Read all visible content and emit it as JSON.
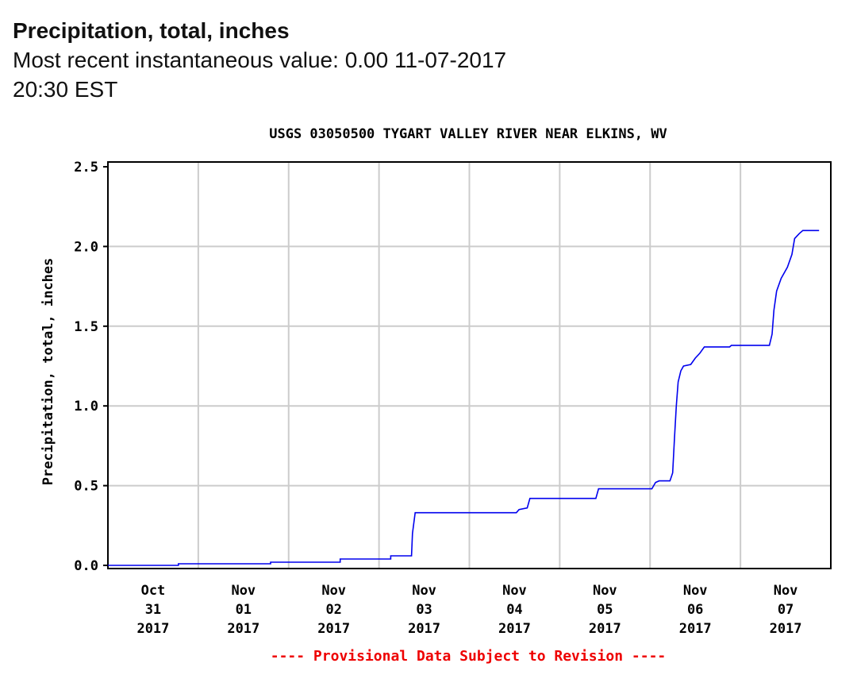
{
  "header": {
    "title": "Precipitation, total, inches",
    "subtitle": "Most recent instantaneous value: 0.00 11-07-2017   20:30 EST"
  },
  "chart_data": {
    "type": "line",
    "title": "USGS 03050500 TYGART VALLEY RIVER NEAR ELKINS, WV",
    "xlabel": "",
    "ylabel": "Precipitation, total, inches",
    "ylim": [
      0,
      2.5
    ],
    "yticks": [
      "0.0",
      "0.5",
      "1.0",
      "1.5",
      "2.0",
      "2.5"
    ],
    "xlim_days_since_oct31": [
      0,
      8
    ],
    "xticks": [
      [
        "Oct",
        "31",
        "2017"
      ],
      [
        "Nov",
        "01",
        "2017"
      ],
      [
        "Nov",
        "02",
        "2017"
      ],
      [
        "Nov",
        "03",
        "2017"
      ],
      [
        "Nov",
        "04",
        "2017"
      ],
      [
        "Nov",
        "05",
        "2017"
      ],
      [
        "Nov",
        "06",
        "2017"
      ],
      [
        "Nov",
        "07",
        "2017"
      ]
    ],
    "grid": true,
    "footnote": "---- Provisional Data Subject to Revision ----",
    "colors": {
      "line": "#0000ee",
      "footnote": "#ee0000",
      "grid": "#cccccc"
    },
    "series": [
      {
        "name": "Precipitation, total",
        "x_days": [
          0,
          0.78,
          0.78,
          1.8,
          1.8,
          2.57,
          2.57,
          3.13,
          3.13,
          3.36,
          3.37,
          3.4,
          4.52,
          4.55,
          4.64,
          4.67,
          5.4,
          5.43,
          6.02,
          6.06,
          6.1,
          6.22,
          6.25,
          6.27,
          6.29,
          6.31,
          6.34,
          6.37,
          6.45,
          6.5,
          6.55,
          6.6,
          6.88,
          6.9,
          7.32,
          7.35,
          7.37,
          7.4,
          7.45,
          7.52,
          7.57,
          7.6,
          7.65,
          7.69,
          7.87
        ],
        "values": [
          0,
          0,
          0.01,
          0.01,
          0.02,
          0.02,
          0.04,
          0.04,
          0.06,
          0.06,
          0.2,
          0.33,
          0.33,
          0.35,
          0.36,
          0.42,
          0.42,
          0.48,
          0.48,
          0.52,
          0.53,
          0.53,
          0.58,
          0.8,
          1.0,
          1.15,
          1.22,
          1.25,
          1.26,
          1.3,
          1.33,
          1.37,
          1.37,
          1.38,
          1.38,
          1.45,
          1.6,
          1.72,
          1.8,
          1.87,
          1.95,
          2.05,
          2.08,
          2.1,
          2.1
        ]
      }
    ]
  }
}
